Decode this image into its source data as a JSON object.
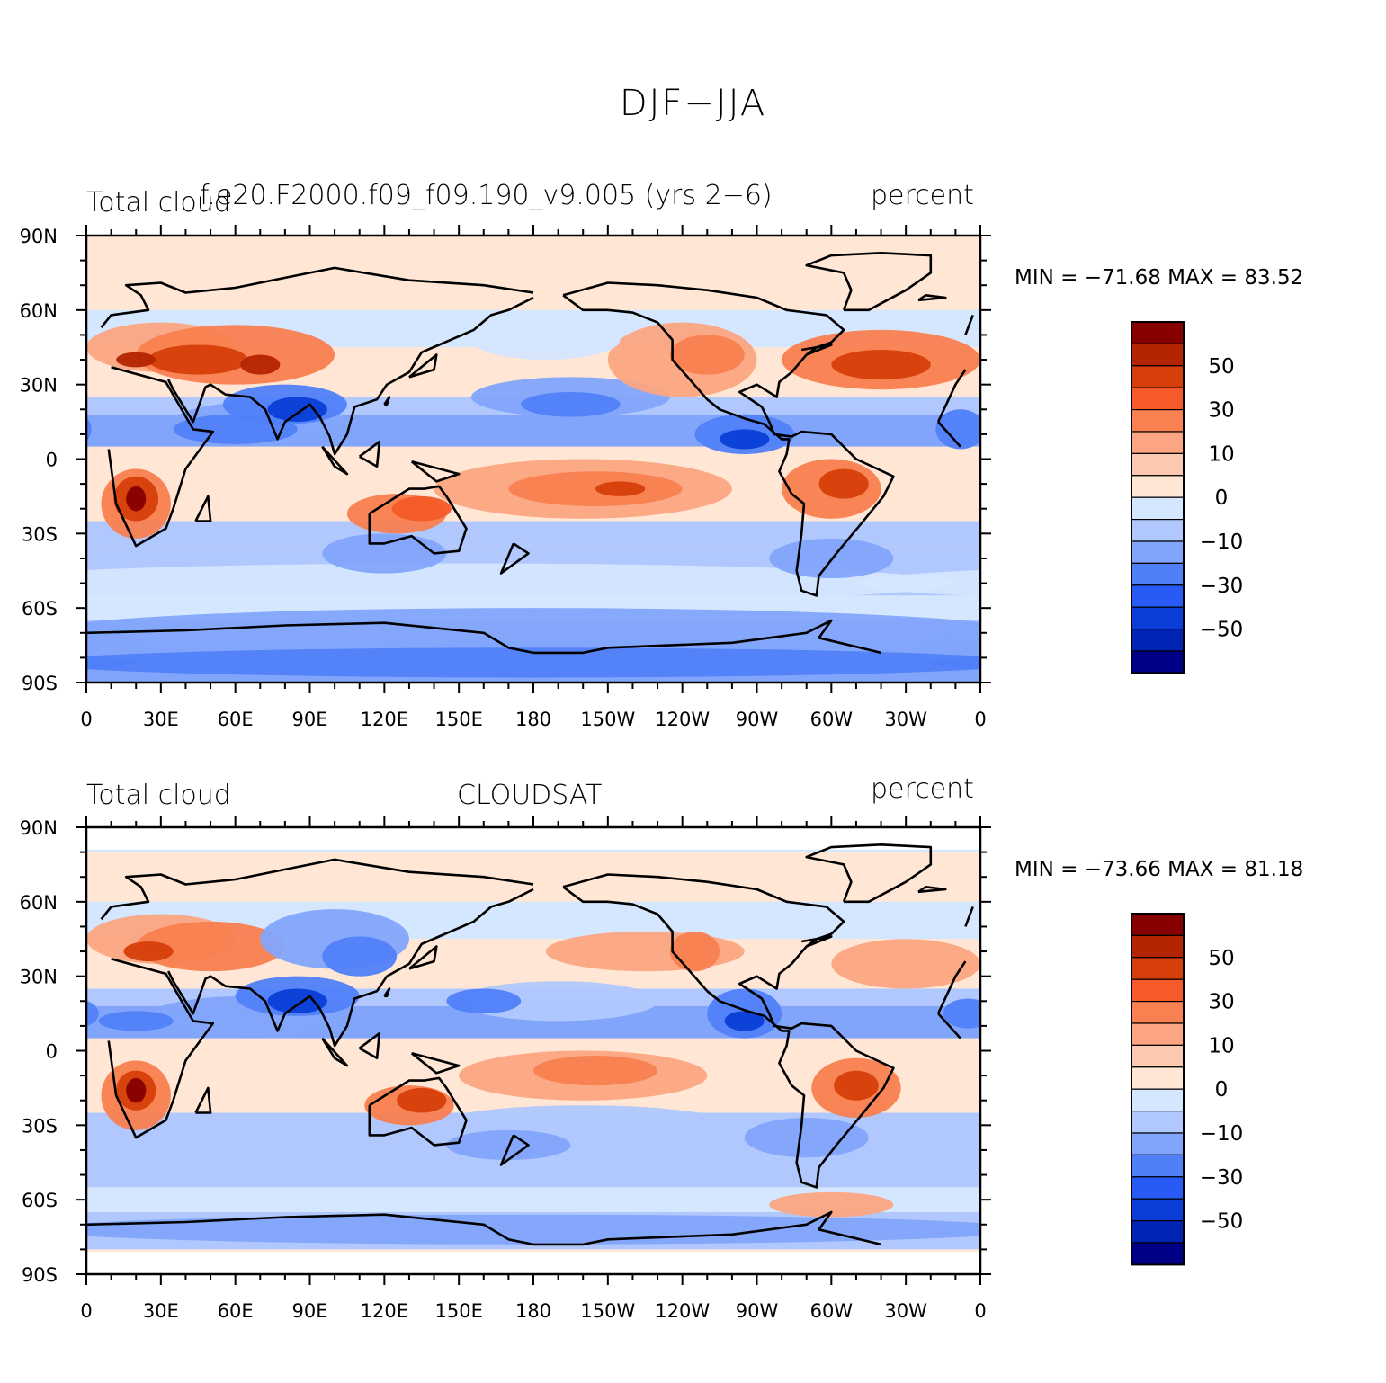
{
  "title": "DJF−JJA",
  "panels": [
    {
      "left_string": "Total cloud",
      "center_string": "f.e20.F2000.f09_f09.190_v9.005 (yrs 2−6)",
      "right_string": "percent",
      "min_label": "MIN = −71.68",
      "max_label": "MAX =  83.52"
    },
    {
      "left_string": "Total cloud",
      "center_string": "CLOUDSAT",
      "right_string": "percent",
      "min_label": "MIN = −73.66",
      "max_label": "MAX =  81.18"
    }
  ],
  "lat_ticks": [
    "90N",
    "60N",
    "30N",
    "0",
    "30S",
    "60S",
    "90S"
  ],
  "lon_ticks": [
    "0",
    "30E",
    "60E",
    "90E",
    "120E",
    "150E",
    "180",
    "150W",
    "120W",
    "90W",
    "60W",
    "30W",
    "0"
  ],
  "colorbar": {
    "colors": [
      "#870000",
      "#b42400",
      "#d63e0a",
      "#f65a28",
      "#f98050",
      "#fca582",
      "#fdc8b0",
      "#ffe6d5",
      "#d5e6ff",
      "#b0c8fd",
      "#82a5fc",
      "#5080f9",
      "#285af6",
      "#0a3ed6",
      "#0024b4",
      "#000087"
    ],
    "labels": [
      "50",
      "30",
      "10",
      "0",
      "−10",
      "−30",
      "−50"
    ]
  }
}
